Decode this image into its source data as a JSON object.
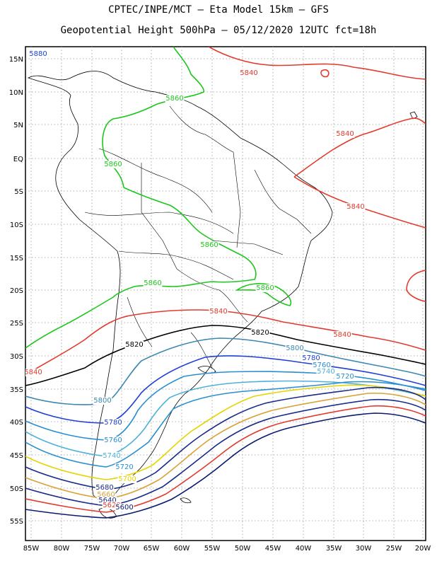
{
  "title_line1": "CPTEC/INPE/MCT –  Eta Model 15km – GFS",
  "title_line2": "Geopotential Height 500hPa – 05/12/2020 12UTC fct=18h",
  "lat_ticks": [
    "15N",
    "10N",
    "5N",
    "EQ",
    "5S",
    "10S",
    "15S",
    "20S",
    "25S",
    "30S",
    "35S",
    "40S",
    "45S",
    "50S",
    "55S"
  ],
  "lon_ticks": [
    "85W",
    "80W",
    "75W",
    "70W",
    "65W",
    "60W",
    "55W",
    "50W",
    "45W",
    "40W",
    "35W",
    "30W",
    "25W",
    "20W"
  ],
  "contour_labels": [
    {
      "text": "5880",
      "color": "#1f3fd6"
    },
    {
      "text": "5840",
      "color": "#e23a2e"
    },
    {
      "text": "5860",
      "color": "#1fc61f"
    },
    {
      "text": "5860",
      "color": "#1fc61f"
    },
    {
      "text": "5840",
      "color": "#e23a2e"
    },
    {
      "text": "5840",
      "color": "#e23a2e"
    },
    {
      "text": "5860",
      "color": "#1fc61f"
    },
    {
      "text": "5860",
      "color": "#1fc61f"
    },
    {
      "text": "5860",
      "color": "#1fc61f"
    },
    {
      "text": "5840",
      "color": "#e23a2e"
    },
    {
      "text": "5820",
      "color": "#000000"
    },
    {
      "text": "5840",
      "color": "#e23a2e"
    },
    {
      "text": "5820",
      "color": "#000000"
    },
    {
      "text": "5800",
      "color": "#3c88b0"
    },
    {
      "text": "5780",
      "color": "#1f3fd6"
    },
    {
      "text": "5760",
      "color": "#2a8fd0"
    },
    {
      "text": "5740",
      "color": "#4fb0d8"
    },
    {
      "text": "5720",
      "color": "#2a8fd0"
    },
    {
      "text": "5840",
      "color": "#e23a2e"
    },
    {
      "text": "5800",
      "color": "#3c88b0"
    },
    {
      "text": "5780",
      "color": "#1f3fd6"
    },
    {
      "text": "5760",
      "color": "#2a8fd0"
    },
    {
      "text": "5740",
      "color": "#4fb0d8"
    },
    {
      "text": "5720",
      "color": "#2a8fd0"
    },
    {
      "text": "5700",
      "color": "#e6d400"
    },
    {
      "text": "5680",
      "color": "#1a2b8a"
    },
    {
      "text": "5660",
      "color": "#d9a23a"
    },
    {
      "text": "5640",
      "color": "#1a2b8a"
    },
    {
      "text": "5620",
      "color": "#e23a2e"
    },
    {
      "text": "5600",
      "color": "#0a1a6e"
    }
  ]
}
